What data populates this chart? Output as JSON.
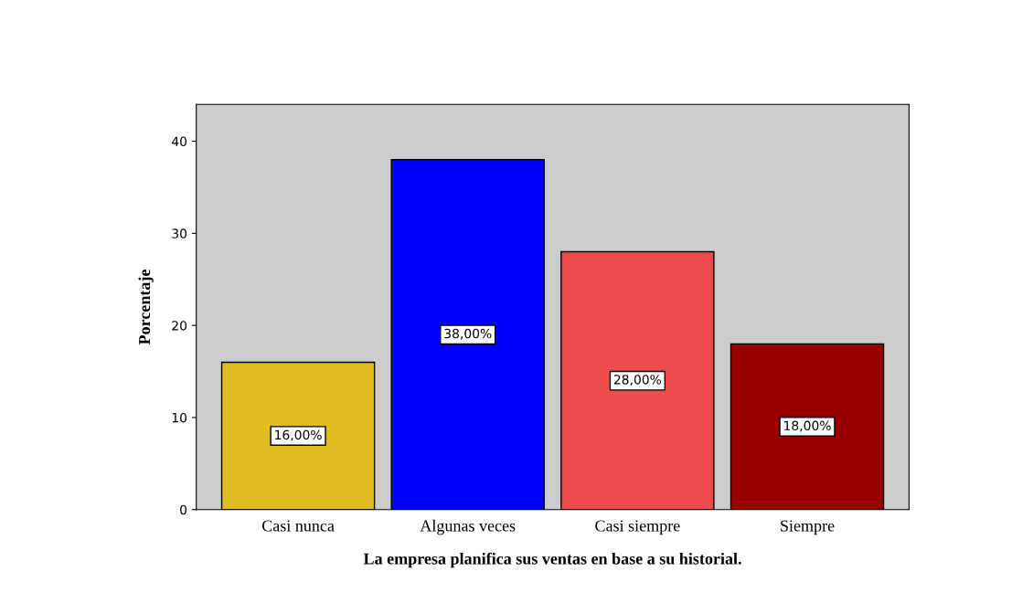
{
  "chart_data": {
    "type": "bar",
    "xlabel": "La empresa planifica sus ventas en base a su historial.",
    "ylabel": "Porcentaje",
    "categories": [
      "Casi nunca",
      "Algunas veces",
      "Casi siempre",
      "Siempre"
    ],
    "values": [
      16,
      38,
      28,
      18
    ],
    "colors": [
      "#e0bc20",
      "#0000ff",
      "#ec4c4c",
      "#990000"
    ],
    "value_labels": [
      "16,00%",
      "38,00%",
      "28,00%",
      "18,00%"
    ],
    "ylim": [
      0,
      44
    ],
    "yticks": [
      0,
      10,
      20,
      30,
      40
    ],
    "grid": false,
    "legend": false
  }
}
